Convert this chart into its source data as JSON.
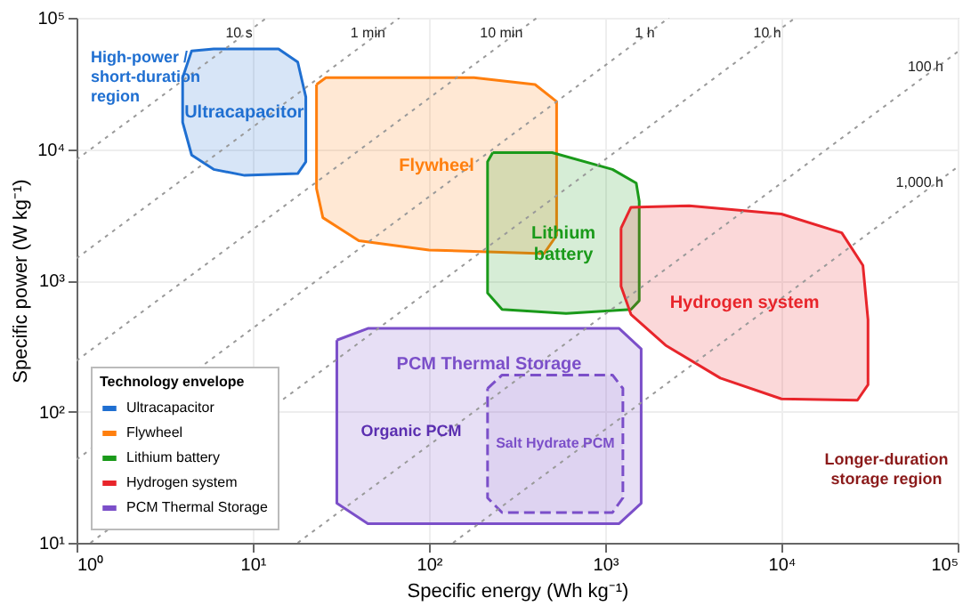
{
  "chart_data": {
    "type": "line",
    "xlabel": "Specific energy (Wh kg⁻¹)",
    "ylabel": "Specific power (W kg⁻¹)",
    "legend_title": "Technology envelope",
    "legend": "bottom left",
    "grid": true,
    "log": "xy",
    "xlim": [
      1,
      100000
    ],
    "ylim": [
      10,
      100000
    ],
    "xticks": [
      {
        "value": 1,
        "label": "10⁰"
      },
      {
        "value": 10,
        "label": "10¹"
      },
      {
        "value": 100,
        "label": "10²"
      },
      {
        "value": 1000,
        "label": "10³"
      },
      {
        "value": 10000,
        "label": "10⁴"
      },
      {
        "value": 100000,
        "label": "10⁵"
      }
    ],
    "yticks": [
      {
        "value": 10,
        "label": "10¹"
      },
      {
        "value": 100,
        "label": "10²"
      },
      {
        "value": 1000,
        "label": "10³"
      },
      {
        "value": 10000,
        "label": "10⁴"
      },
      {
        "value": 100000,
        "label": "10⁵"
      }
    ],
    "series": [
      {
        "name": "Ultracapacitor",
        "type": "area",
        "color": "#1f6fd1",
        "x": [
          4,
          4.5,
          6,
          14,
          18,
          20,
          20,
          18,
          9,
          6,
          4.5,
          4,
          4
        ],
        "values": [
          35000,
          56000,
          58000,
          58000,
          46000,
          25000,
          8000,
          6500,
          6300,
          7000,
          9000,
          16000,
          35000
        ]
      },
      {
        "name": "Flywheel",
        "type": "area",
        "color": "#ff7f0e",
        "x": [
          23,
          26,
          180,
          400,
          530,
          530,
          450,
          100,
          40,
          25,
          23,
          23
        ],
        "values": [
          31000,
          35000,
          35000,
          31000,
          23000,
          2200,
          1600,
          1700,
          2000,
          3000,
          5000,
          31000
        ]
      },
      {
        "name": "Lithium battery",
        "type": "area",
        "color": "#1a9a1a",
        "x": [
          230,
          500,
          1100,
          1500,
          1560,
          1560,
          1400,
          600,
          260,
          215,
          215,
          230
        ],
        "values": [
          9400,
          9400,
          7000,
          5500,
          4000,
          700,
          600,
          560,
          600,
          800,
          8000,
          9400
        ]
      },
      {
        "name": "Hydrogen system",
        "type": "area",
        "color": "#e8252b",
        "x": [
          1230,
          1400,
          3000,
          10000,
          22000,
          29000,
          31000,
          31000,
          27000,
          10000,
          4500,
          2200,
          1400,
          1230,
          1230
        ],
        "values": [
          2500,
          3600,
          3700,
          3200,
          2300,
          1300,
          500,
          160,
          122,
          125,
          180,
          320,
          550,
          900,
          2500
        ]
      },
      {
        "name": "PCM Thermal Storage",
        "type": "area",
        "color": "#7b4fc9",
        "x": [
          30,
          45,
          1200,
          1600,
          1600,
          1200,
          45,
          30,
          30
        ],
        "values": [
          350,
          430,
          430,
          300,
          20,
          14,
          14,
          20,
          350
        ]
      },
      {
        "name": "Salt Hydrate PCM",
        "type": "area",
        "line_style": "dashed",
        "color": "#7b4fc9",
        "x": [
          215,
          260,
          1100,
          1260,
          1260,
          1100,
          260,
          215,
          215
        ],
        "values": [
          150,
          190,
          190,
          150,
          22,
          17,
          17,
          22,
          150
        ]
      },
      {
        "name": "10 s",
        "line_style": "dotted",
        "color": "#9a9a9a",
        "x": [
          1,
          12
        ],
        "values": [
          8300,
          100000
        ]
      },
      {
        "name": "1 min",
        "line_style": "dotted",
        "color": "#9a9a9a",
        "x": [
          1,
          68
        ],
        "values": [
          1470,
          100000
        ]
      },
      {
        "name": "10 min",
        "line_style": "dotted",
        "color": "#9a9a9a",
        "x": [
          1,
          410
        ],
        "values": [
          244,
          100000
        ]
      },
      {
        "name": "1 h",
        "line_style": "dotted",
        "color": "#9a9a9a",
        "x": [
          1,
          2300
        ],
        "values": [
          43,
          100000
        ]
      },
      {
        "name": "10 h",
        "line_style": "dotted",
        "color": "#9a9a9a",
        "x": [
          1.2,
          12000
        ],
        "values": [
          10,
          100000
        ]
      },
      {
        "name": "100 h",
        "line_style": "dotted",
        "color": "#9a9a9a",
        "x": [
          18,
          100000
        ],
        "values": [
          10,
          55000
        ]
      },
      {
        "name": "1,000 h",
        "line_style": "dotted",
        "color": "#9a9a9a",
        "x": [
          137,
          100000
        ],
        "values": [
          10,
          7300
        ]
      }
    ],
    "annotations": [
      "Organic PCM",
      "High-power / short-duration region",
      "Longer-duration storage region"
    ]
  }
}
